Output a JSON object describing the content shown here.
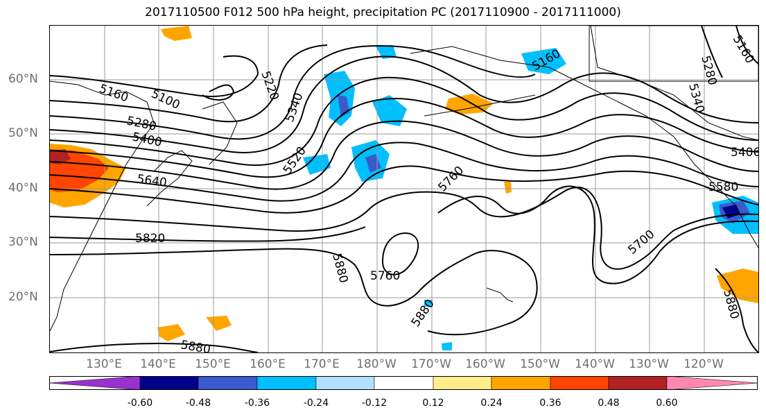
{
  "title": "2017110500 F012 500 hPa height, precipitation PC (2017110900 - 2017111000)",
  "lat_labels": [
    "60°N",
    "50°N",
    "40°N",
    "30°N",
    "20°N"
  ],
  "lon_labels": [
    "130°E",
    "140°E",
    "150°E",
    "160°E",
    "170°E",
    "180°W",
    "170°W",
    "160°W",
    "150°W",
    "140°W",
    "130°W",
    "120°W"
  ],
  "contour_labels": [
    "5160",
    "5100",
    "5220",
    "5340",
    "5280",
    "5400",
    "5640",
    "5520",
    "5820",
    "5880",
    "5760",
    "5880",
    "5760",
    "5880",
    "5580",
    "5700",
    "5406",
    "5880",
    "5160",
    "5280",
    "5160",
    "5340"
  ],
  "colorbar": {
    "colors": [
      "#9932cc",
      "#00008b",
      "#3a5bcb",
      "#00bfff",
      "#b0e0ff",
      "#ffffff",
      "#ffec8b",
      "#ffa500",
      "#ff4500",
      "#b22222",
      "#ff88b0"
    ],
    "ticks": [
      "-0.60",
      "-0.48",
      "-0.36",
      "-0.24",
      "-0.12",
      "0.12",
      "0.24",
      "0.36",
      "0.48",
      "0.60"
    ]
  }
}
